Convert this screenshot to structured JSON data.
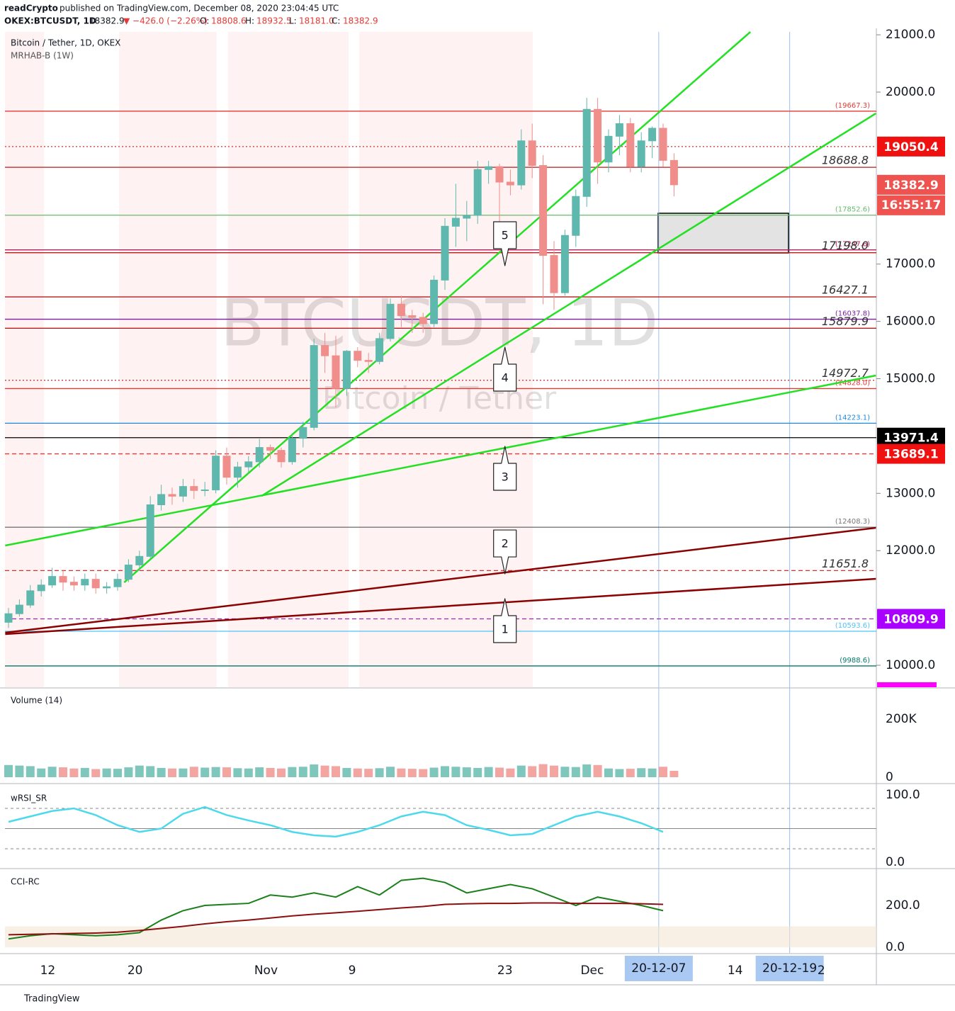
{
  "header": {
    "author": "readCrypto",
    "published": "published on TradingView.com, December 08, 2020 23:04:45 UTC",
    "symbol": "OKEX:BTCUSDT, 1D",
    "last": "18382.9",
    "change": "▼ −426.0 (−2.26%)",
    "o_label": "O:",
    "o": "18808.6",
    "h_label": "H:",
    "h": "18932.5",
    "l_label": "L:",
    "l": "18181.0",
    "c_label": "C:",
    "c": "18382.9",
    "legend": "Bitcoin / Tether, 1D, OKEX",
    "indicator": "MRHAB-B (1W)",
    "watermark": "BTCUSDT, 1D",
    "watermark_sub": "Bitcoin / Tether",
    "footer": "TradingView"
  },
  "chart_data": {
    "type": "candlestick",
    "up_color": "#5fb8ad",
    "down_color": "#ef8e8a",
    "grid": false,
    "ylim": [
      9617,
      21051
    ],
    "yticks": [
      {
        "value": 10000,
        "label": "10000.0"
      },
      {
        "value": 12000,
        "label": "12000.0"
      },
      {
        "value": 13000,
        "label": "13000.0"
      },
      {
        "value": 15000,
        "label": "15000.0"
      },
      {
        "value": 16000,
        "label": "16000.0"
      },
      {
        "value": 17000,
        "label": "17000.0"
      },
      {
        "value": 20000,
        "label": "20000.0"
      },
      {
        "value": 21000,
        "label": "21000.0"
      }
    ],
    "xticks": [
      {
        "value": 3.6,
        "label": "12"
      },
      {
        "value": 11.6,
        "label": "20"
      },
      {
        "value": 23.6,
        "label": "Nov"
      },
      {
        "value": 31.5,
        "label": "9"
      },
      {
        "value": 45.5,
        "label": "23"
      },
      {
        "value": 53.5,
        "label": "Dec"
      },
      {
        "value": 66.6,
        "label": "14"
      },
      {
        "value": 74.5,
        "label": "2"
      }
    ],
    "xmarkers": [
      {
        "value": 59.6,
        "label": "20-12-07"
      },
      {
        "value": 71.6,
        "label": "20-12-19"
      }
    ],
    "ohlc": [
      [
        10750,
        11000,
        10650,
        10900
      ],
      [
        10900,
        11150,
        10850,
        11050
      ],
      [
        11050,
        11400,
        11000,
        11300
      ],
      [
        11300,
        11500,
        11200,
        11400
      ],
      [
        11400,
        11700,
        11350,
        11550
      ],
      [
        11550,
        11650,
        11300,
        11450
      ],
      [
        11450,
        11550,
        11300,
        11400
      ],
      [
        11400,
        11600,
        11300,
        11500
      ],
      [
        11500,
        11600,
        11250,
        11350
      ],
      [
        11350,
        11450,
        11250,
        11370
      ],
      [
        11370,
        11600,
        11300,
        11500
      ],
      [
        11500,
        11850,
        11450,
        11750
      ],
      [
        11750,
        12000,
        11650,
        11900
      ],
      [
        11900,
        12950,
        11850,
        12800
      ],
      [
        12800,
        13150,
        12700,
        12980
      ],
      [
        12980,
        13100,
        12800,
        12950
      ],
      [
        12950,
        13250,
        12850,
        13120
      ],
      [
        13120,
        13250,
        12900,
        13050
      ],
      [
        13050,
        13200,
        12950,
        13060
      ],
      [
        13060,
        13750,
        13000,
        13650
      ],
      [
        13650,
        13800,
        13150,
        13280
      ],
      [
        13280,
        13550,
        13100,
        13460
      ],
      [
        13460,
        13650,
        13350,
        13550
      ],
      [
        13550,
        13950,
        13450,
        13800
      ],
      [
        13800,
        13850,
        13600,
        13750
      ],
      [
        13750,
        13800,
        13450,
        13550
      ],
      [
        13550,
        14050,
        13500,
        13960
      ],
      [
        13960,
        14250,
        13800,
        14150
      ],
      [
        14150,
        15700,
        14100,
        15580
      ],
      [
        15580,
        15800,
        15100,
        15400
      ],
      [
        15400,
        15750,
        14500,
        14830
      ],
      [
        14830,
        15500,
        14700,
        15480
      ],
      [
        15480,
        15550,
        15200,
        15320
      ],
      [
        15320,
        15450,
        15100,
        15300
      ],
      [
        15300,
        15800,
        15250,
        15700
      ],
      [
        15700,
        16400,
        15650,
        16300
      ],
      [
        16300,
        16450,
        15900,
        16100
      ],
      [
        16100,
        16200,
        15800,
        16070
      ],
      [
        16070,
        16150,
        15800,
        15960
      ],
      [
        15960,
        16800,
        15900,
        16720
      ],
      [
        16720,
        17800,
        16550,
        17660
      ],
      [
        17660,
        18400,
        17300,
        17800
      ],
      [
        17800,
        18100,
        17400,
        17850
      ],
      [
        17850,
        18800,
        17700,
        18650
      ],
      [
        18650,
        18800,
        18400,
        18700
      ],
      [
        18700,
        18750,
        17700,
        18430
      ],
      [
        18430,
        18650,
        18200,
        18380
      ],
      [
        18380,
        19350,
        18300,
        19150
      ],
      [
        19150,
        19450,
        18500,
        18720
      ],
      [
        18720,
        18900,
        16300,
        17150
      ],
      [
        17150,
        17400,
        16200,
        16500
      ],
      [
        16500,
        17600,
        16450,
        17500
      ],
      [
        17500,
        18300,
        17300,
        18180
      ],
      [
        18180,
        19900,
        18000,
        19700
      ],
      [
        19700,
        19900,
        18400,
        18780
      ],
      [
        18780,
        19350,
        18600,
        19230
      ],
      [
        19230,
        19600,
        18900,
        19450
      ],
      [
        19450,
        19550,
        18600,
        18700
      ],
      [
        18700,
        19300,
        18600,
        19150
      ],
      [
        19150,
        19400,
        18850,
        19370
      ],
      [
        19370,
        19450,
        18700,
        18808.6
      ],
      [
        18808.6,
        18932.5,
        18181.0,
        18382.9
      ]
    ],
    "levels": [
      {
        "value": 19667.3,
        "label": "(19667.3)",
        "color": "#e53935",
        "style": "solid",
        "text": "small"
      },
      {
        "value": 19050.4,
        "label": "19050.4",
        "color": "#d32f2f",
        "style": "dotted",
        "text": "none"
      },
      {
        "value": 18688.8,
        "label": "18688.8",
        "color": "#b71c1c",
        "style": "solid",
        "text": "italic"
      },
      {
        "value": 17852.6,
        "label": "(17852.6)",
        "color": "#66bb6a",
        "style": "solid",
        "text": "small"
      },
      {
        "value": 17247.6,
        "label": "(17247.6)",
        "color": "#c2185b",
        "style": "solid",
        "text": "small"
      },
      {
        "value": 17198.0,
        "label": "17198.0",
        "color": "#b71c1c",
        "style": "solid",
        "text": "italic"
      },
      {
        "value": 16427.1,
        "label": "16427.1",
        "color": "#b71c1c",
        "style": "solid",
        "text": "italic"
      },
      {
        "value": 16037.8,
        "label": "(16037.8)",
        "color": "#7b1fa2",
        "style": "solid",
        "text": "small"
      },
      {
        "value": 15879.9,
        "label": "15879.9",
        "color": "#b71c1c",
        "style": "solid",
        "text": "italic"
      },
      {
        "value": 14972.7,
        "label": "14972.7",
        "color": "#c62828",
        "style": "dotted",
        "text": "italic"
      },
      {
        "value": 14828.0,
        "label": "(14828.0)",
        "color": "#e53935",
        "style": "solid",
        "text": "small"
      },
      {
        "value": 14223.1,
        "label": "(14223.1)",
        "color": "#1e88e5",
        "style": "solid",
        "text": "small"
      },
      {
        "value": 13971.4,
        "label": "13971.4",
        "color": "#000000",
        "style": "solid",
        "text": "none"
      },
      {
        "value": 13689.1,
        "label": "13689.1",
        "color": "#e53935",
        "style": "dashed",
        "text": "none"
      },
      {
        "value": 12408.3,
        "label": "(12408.3)",
        "color": "#777777",
        "style": "solid",
        "text": "small"
      },
      {
        "value": 11651.8,
        "label": "11651.8",
        "color": "#d32f2f",
        "style": "dashed",
        "text": "italic"
      },
      {
        "value": 10809.9,
        "label": "10809.9",
        "color": "#9c27b0",
        "style": "dashed",
        "text": "none"
      },
      {
        "value": 10593.6,
        "label": "(10593.6)",
        "color": "#4fc3f7",
        "style": "solid",
        "text": "small"
      },
      {
        "value": 9988.6,
        "label": "(9988.6)",
        "color": "#00796b",
        "style": "solid",
        "text": "small"
      }
    ],
    "badges": [
      {
        "value": 19050.4,
        "color": "#f01010"
      },
      {
        "value": 18382.9,
        "color": "#ef5350"
      },
      {
        "value": 13971.4,
        "color": "#000000"
      },
      {
        "value": 13689.1,
        "color": "#f01010"
      },
      {
        "value": 10809.9,
        "color": "#aa00ff"
      }
    ],
    "countdown": "16:55:17",
    "trendlines": [
      {
        "color": "#22e022",
        "points": [
          [
            -0.3,
            12089
          ],
          [
            79.5,
            15056
          ]
        ]
      },
      {
        "color": "#22e022",
        "points": [
          [
            10.6,
            11446
          ],
          [
            68,
            21051
          ]
        ]
      },
      {
        "color": "#22e022",
        "points": [
          [
            23.2,
            12954
          ],
          [
            79.5,
            19629
          ]
        ]
      },
      {
        "color": "#8b0000",
        "points": [
          [
            -0.3,
            10569
          ],
          [
            79.5,
            12398
          ]
        ]
      },
      {
        "color": "#8b0000",
        "points": [
          [
            -0.3,
            10544
          ],
          [
            79.5,
            11508
          ]
        ]
      }
    ],
    "waves": [
      {
        "label": "1",
        "x": 45.5,
        "y": 11162,
        "pointer": "up"
      },
      {
        "label": "2",
        "x": 45.5,
        "y": 11594,
        "pointer": "down"
      },
      {
        "label": "3",
        "x": 45.5,
        "y": 13820,
        "pointer": "up"
      },
      {
        "label": "4",
        "x": 45.5,
        "y": 15550,
        "pointer": "up"
      },
      {
        "label": "5",
        "x": 45.5,
        "y": 16972,
        "pointer": "down"
      }
    ],
    "volume": {
      "title": "Volume (14)",
      "values": [
        42000,
        40000,
        38000,
        30000,
        36000,
        34000,
        30000,
        32000,
        28000,
        30000,
        29000,
        34000,
        40000,
        38000,
        32000,
        30000,
        30000,
        36000,
        33000,
        35000,
        34000,
        31000,
        30000,
        34000,
        32000,
        30000,
        35000,
        36000,
        44000,
        40000,
        38000,
        32000,
        30000,
        29000,
        31000,
        36000,
        30000,
        29000,
        28000,
        33000,
        38000,
        36000,
        34000,
        32000,
        35000,
        33000,
        30000,
        40000,
        38000,
        45000,
        40000,
        36000,
        35000,
        44000,
        42000,
        30000,
        28000,
        29000,
        31000,
        30000,
        36000,
        22000
      ],
      "ylim": [
        -19500,
        304900
      ],
      "yticks": [
        {
          "value": 0,
          "label": "0"
        },
        {
          "value": 200000,
          "label": "200K"
        }
      ]
    },
    "wrsi": {
      "title": "wRSI_SR",
      "color": "#4dd9ec",
      "x": [
        0,
        2,
        4,
        6,
        8,
        10,
        12,
        14,
        16,
        18,
        20,
        22,
        24,
        26,
        28,
        30,
        32,
        34,
        36,
        38,
        40,
        42,
        44,
        46,
        48,
        50,
        52,
        54,
        56,
        58,
        60
      ],
      "values": [
        60,
        68,
        76,
        80,
        70,
        55,
        45,
        50,
        72,
        82,
        70,
        62,
        55,
        45,
        40,
        38,
        45,
        55,
        68,
        75,
        70,
        55,
        48,
        40,
        42,
        55,
        68,
        75,
        68,
        58,
        45
      ],
      "guides": [
        80,
        50,
        20
      ],
      "ylim": [
        -8.4,
        114.7
      ],
      "yticks": [
        {
          "value": 0,
          "label": "0.0"
        },
        {
          "value": 100,
          "label": "100.0"
        }
      ]
    },
    "cci": {
      "title": "CCI-RC",
      "x": [
        0,
        2,
        4,
        6,
        8,
        10,
        12,
        14,
        16,
        18,
        20,
        22,
        24,
        26,
        28,
        30,
        32,
        34,
        36,
        38,
        40,
        42,
        44,
        46,
        48,
        50,
        52,
        54,
        56,
        58,
        60
      ],
      "series": [
        {
          "color": "#1b7f1b",
          "values": [
            40,
            55,
            65,
            60,
            55,
            60,
            70,
            130,
            175,
            200,
            205,
            210,
            250,
            240,
            260,
            240,
            290,
            250,
            320,
            330,
            310,
            260,
            280,
            300,
            280,
            240,
            200,
            240,
            220,
            200,
            175
          ]
        },
        {
          "color": "#8b1010",
          "values": [
            60,
            62,
            64,
            66,
            68,
            72,
            80,
            90,
            100,
            112,
            122,
            130,
            140,
            150,
            158,
            165,
            172,
            180,
            188,
            195,
            205,
            208,
            210,
            210,
            212,
            212,
            210,
            210,
            210,
            208,
            205
          ]
        }
      ],
      "ylim": [
        -27,
        369.5
      ],
      "yticks": [
        {
          "value": 0,
          "label": "0.0"
        },
        {
          "value": 200,
          "label": "200.0"
        }
      ]
    }
  }
}
